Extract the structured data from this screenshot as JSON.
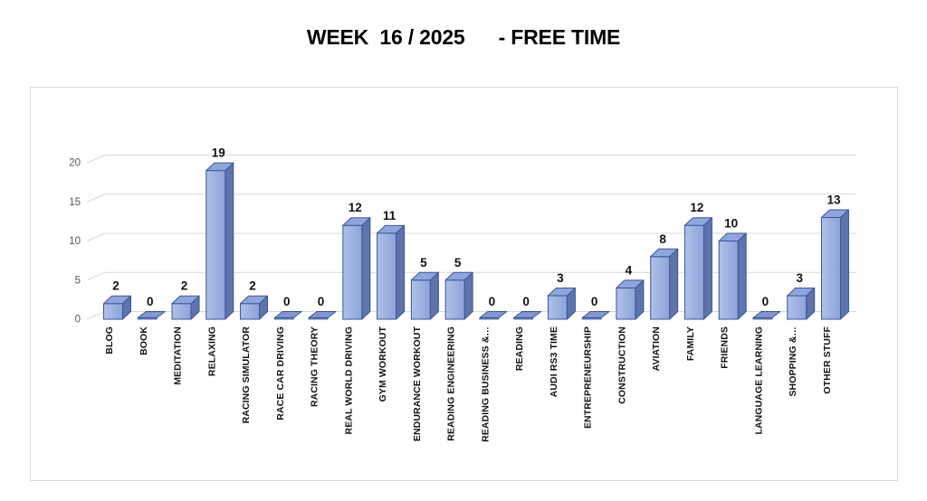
{
  "title": "WEEK  16 / 2025      - FREE TIME",
  "chart_data": {
    "type": "bar",
    "style": "3d-column",
    "title": "WEEK  16 / 2025      - FREE TIME",
    "categories": [
      "BLOG",
      "BOOK",
      "MEDITATION",
      "RELAXING",
      "RACING SIMULATOR",
      "RACE CAR DRIVING",
      "RACING THEORY",
      "REAL WORLD DRIVING",
      "GYM WORKOUT",
      "ENDURANCE WORKOUT",
      "READING ENGINEERING",
      "READING BUSINESS &…",
      "READING",
      "AUDI RS3 TIME",
      "ENTREPRENEURSHIP",
      "CONSTRUCTION",
      "AVIATION",
      "FAMILY",
      "FRIENDS",
      "LANGUAGE LEARNING",
      "SHOPPING &…",
      "OTHER STUFF"
    ],
    "values": [
      2,
      0,
      2,
      19,
      2,
      0,
      0,
      12,
      11,
      5,
      5,
      0,
      0,
      3,
      0,
      4,
      8,
      12,
      10,
      0,
      3,
      13
    ],
    "data_labels": true,
    "xlabel": "",
    "ylabel": "",
    "ylim": [
      0,
      20
    ],
    "yticks": [
      0,
      5,
      10,
      15,
      20
    ],
    "grid": true,
    "legend": false,
    "colors": {
      "bar_front_light": "#AFC0E9",
      "bar_front_dark": "#8DA3D9",
      "bar_top": "#8FA6DC",
      "bar_side": "#5F73AC",
      "bar_border": "#3A5694",
      "bar_flat_zero": "#8296CF",
      "gridline": "#D9D9D9",
      "tick_text": "#595959",
      "label_text": "#111111"
    }
  }
}
